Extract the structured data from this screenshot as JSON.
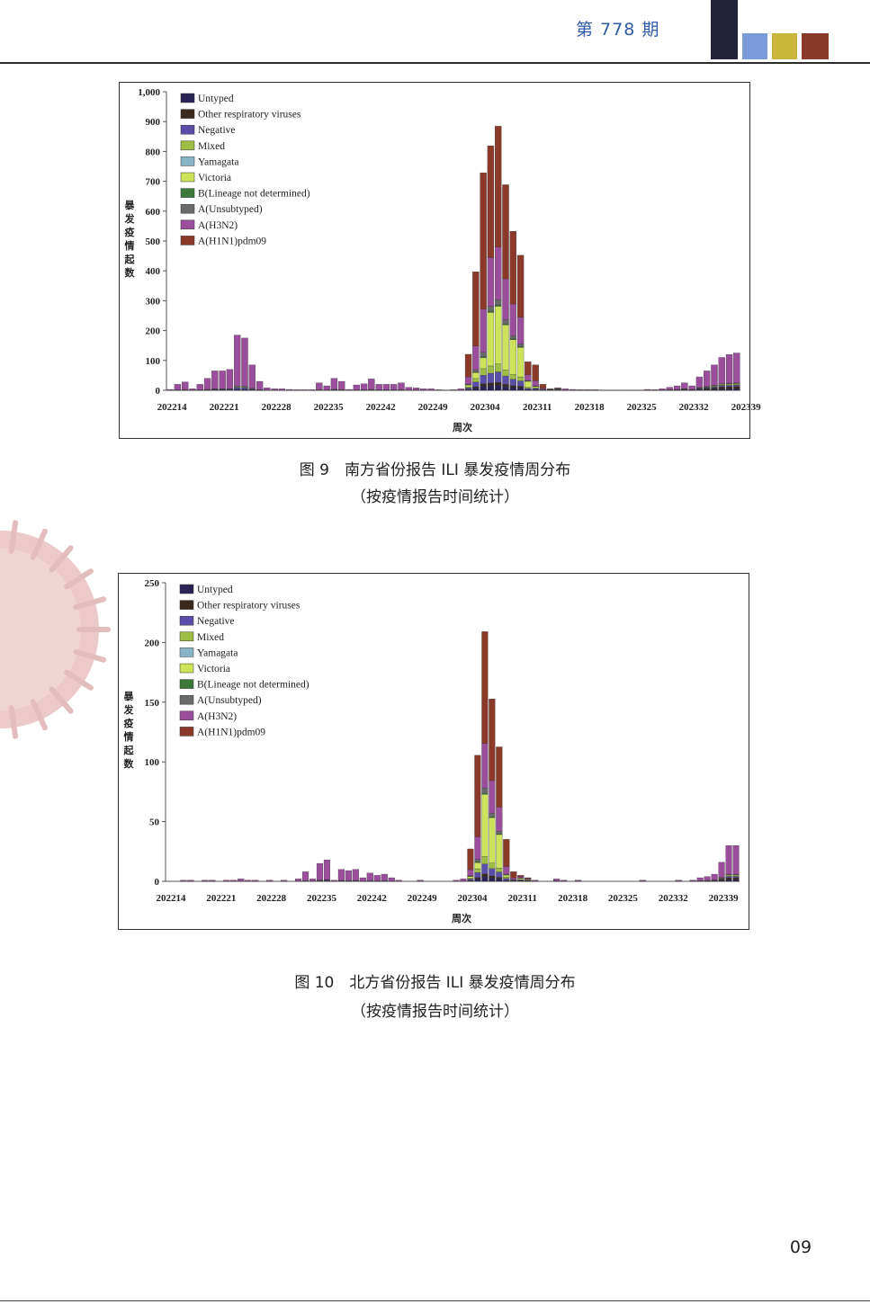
{
  "header": {
    "issue_label": "第 778 期"
  },
  "colors": {
    "block1": "#222238",
    "block2": "#7a9bd8",
    "block3": "#c9b63a",
    "block4": "#8b3a2a",
    "accent": "#2e5da8"
  },
  "page_number": "09",
  "legend_entries": [
    {
      "name": "Untyped",
      "color": "#2a2456"
    },
    {
      "name": "Other respiratory viruses",
      "color": "#3a2a1e"
    },
    {
      "name": "Negative",
      "color": "#5b4ea8"
    },
    {
      "name": "Mixed",
      "color": "#9dbd45"
    },
    {
      "name": "Yamagata",
      "color": "#88b4c8"
    },
    {
      "name": "Victoria",
      "color": "#cde35a"
    },
    {
      "name": "B(Lineage not determined)",
      "color": "#3d7a3a"
    },
    {
      "name": "A(Unsubtyped)",
      "color": "#6a6a6a"
    },
    {
      "name": "A(H3N2)",
      "color": "#9a4e9c"
    },
    {
      "name": "A(H1N1)pdm09",
      "color": "#8b3a2a"
    }
  ],
  "chart_data": [
    {
      "type": "bar",
      "stacked": true,
      "ylabel": "暴发疫情起数",
      "xlabel": "周次",
      "ylim": [
        0,
        1000
      ],
      "yticks": [
        "0",
        "100",
        "200",
        "300",
        "400",
        "500",
        "600",
        "700",
        "800",
        "900",
        "1,000"
      ],
      "xtick_labels": [
        "202214",
        "202221",
        "202228",
        "202235",
        "202242",
        "202249",
        "202304",
        "202311",
        "202318",
        "202325",
        "202332",
        "202339"
      ],
      "legend_position": "top-left",
      "caption_line1": "图 9　南方省份报告 ILI 暴发疫情周分布",
      "caption_line2": "（按疫情报告时间统计）",
      "totals": [
        3,
        20,
        28,
        5,
        20,
        40,
        65,
        65,
        70,
        185,
        175,
        85,
        30,
        8,
        5,
        5,
        3,
        2,
        2,
        2,
        25,
        15,
        40,
        30,
        3,
        18,
        22,
        38,
        20,
        20,
        20,
        25,
        10,
        8,
        5,
        5,
        2,
        1,
        2,
        5,
        120,
        395,
        725,
        815,
        880,
        685,
        530,
        450,
        95,
        85,
        20,
        5,
        8,
        5,
        3,
        2,
        2,
        2,
        1,
        1,
        1,
        1,
        1,
        1,
        3,
        2,
        5,
        10,
        15,
        25,
        15,
        45,
        65,
        85,
        110,
        120,
        125
      ],
      "comp": [
        [
          0,
          0,
          0,
          0,
          0,
          0,
          0,
          0,
          1.0,
          0,
          0
        ],
        [
          0,
          0,
          0,
          0,
          0,
          0,
          0,
          0,
          1.0,
          0,
          0
        ]
      ]
    },
    {
      "type": "bar",
      "stacked": true,
      "ylabel": "暴发疫情起数",
      "xlabel": "周次",
      "ylim": [
        0,
        250
      ],
      "yticks": [
        "0",
        "50",
        "100",
        "150",
        "200",
        "250"
      ],
      "xtick_labels": [
        "202214",
        "202221",
        "202228",
        "202235",
        "202242",
        "202249",
        "202304",
        "202311",
        "202318",
        "202325",
        "202332",
        "202339"
      ],
      "legend_position": "top-left",
      "caption_line1": "图 10　北方省份报告 ILI 暴发疫情周分布",
      "caption_line2": "（按疫情报告时间统计）",
      "totals": [
        0,
        0,
        1,
        1,
        0,
        1,
        1,
        0,
        1,
        1,
        2,
        1,
        1,
        0,
        1,
        0,
        1,
        0,
        2,
        8,
        2,
        15,
        18,
        1,
        10,
        9,
        10,
        3,
        7,
        5,
        6,
        3,
        1,
        0,
        0,
        1,
        0,
        0,
        0,
        0,
        1,
        2,
        27,
        105,
        208,
        152,
        112,
        35,
        8,
        5,
        3,
        1,
        0,
        0,
        2,
        1,
        0,
        1,
        0,
        0,
        0,
        0,
        0,
        0,
        0,
        0,
        1,
        0,
        0,
        0,
        0,
        1,
        0,
        1,
        3,
        4,
        6,
        16,
        30,
        30
      ]
    }
  ]
}
